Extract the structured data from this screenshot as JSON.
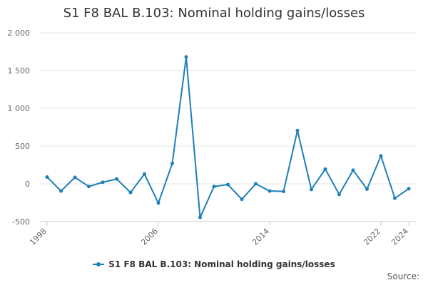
{
  "chart_data": {
    "type": "line",
    "title": "S1 F8 BAL B.103: Nominal holding gains/losses",
    "xlabel": "",
    "ylabel": "",
    "x": [
      1998,
      1999,
      2000,
      2001,
      2002,
      2003,
      2004,
      2005,
      2006,
      2007,
      2008,
      2009,
      2010,
      2011,
      2012,
      2013,
      2014,
      2015,
      2016,
      2017,
      2018,
      2019,
      2020,
      2021,
      2022,
      2023,
      2024
    ],
    "series": [
      {
        "name": "S1 F8 BAL B.103: Nominal holding gains/losses",
        "values": [
          90,
          -95,
          85,
          -35,
          20,
          65,
          -115,
          130,
          -255,
          270,
          1680,
          -445,
          -35,
          -10,
          -205,
          0,
          -95,
          -100,
          705,
          -75,
          195,
          -140,
          180,
          -70,
          370,
          -190,
          -65
        ]
      }
    ],
    "ylim": [
      -500,
      2000
    ],
    "yticks": [
      -500,
      0,
      500,
      1000,
      1500,
      2000
    ],
    "ytick_labels": [
      "-500",
      "0",
      "500",
      "1 000",
      "1 500",
      "2 000"
    ],
    "xticks": [
      1998,
      2006,
      2014,
      2022,
      2024
    ],
    "xtick_labels": [
      "1998",
      "2006",
      "2014",
      "2022",
      "2024"
    ],
    "grid": true,
    "legend_position": "bottom-center",
    "colors": {
      "series": "#1f7fb8",
      "grid": "#e6e6e6",
      "axis": "#cccccc",
      "text": "#666666"
    }
  },
  "source_label": "Source:"
}
